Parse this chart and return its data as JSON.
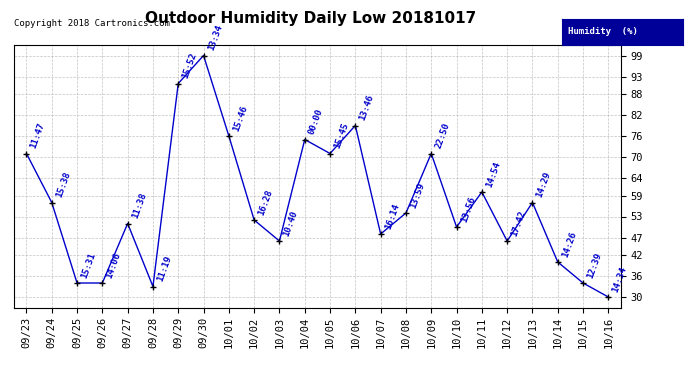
{
  "title": "Outdoor Humidity Daily Low 20181017",
  "copyright": "Copyright 2018 Cartronics.com",
  "legend_label": "Humidity  (%)",
  "x_labels": [
    "09/23",
    "09/24",
    "09/25",
    "09/26",
    "09/27",
    "09/28",
    "09/29",
    "09/30",
    "10/01",
    "10/02",
    "10/03",
    "10/04",
    "10/05",
    "10/06",
    "10/07",
    "10/08",
    "10/09",
    "10/10",
    "10/11",
    "10/12",
    "10/13",
    "10/14",
    "10/15",
    "10/16"
  ],
  "y_values": [
    71,
    57,
    34,
    34,
    51,
    33,
    91,
    99,
    76,
    52,
    46,
    75,
    71,
    79,
    48,
    54,
    71,
    50,
    60,
    46,
    57,
    40,
    34,
    30
  ],
  "time_labels": [
    "11:47",
    "15:38",
    "15:31",
    "14:06",
    "11:38",
    "11:19",
    "15:52",
    "13:34",
    "15:46",
    "16:28",
    "10:40",
    "00:00",
    "15:45",
    "13:46",
    "16:14",
    "13:59",
    "22:50",
    "13:56",
    "14:54",
    "17:42",
    "14:29",
    "14:26",
    "12:39",
    "14:34"
  ],
  "line_color": "#0000CC",
  "marker_color": "#000000",
  "bg_color": "#ffffff",
  "grid_color": "#aaaaaa",
  "yticks": [
    30,
    36,
    42,
    47,
    53,
    59,
    64,
    70,
    76,
    82,
    88,
    93,
    99
  ],
  "ylim": [
    27,
    102
  ],
  "title_fontsize": 11,
  "label_fontsize": 6.5,
  "tick_fontsize": 7.5,
  "legend_bg": "#000099",
  "legend_fg": "#ffffff"
}
